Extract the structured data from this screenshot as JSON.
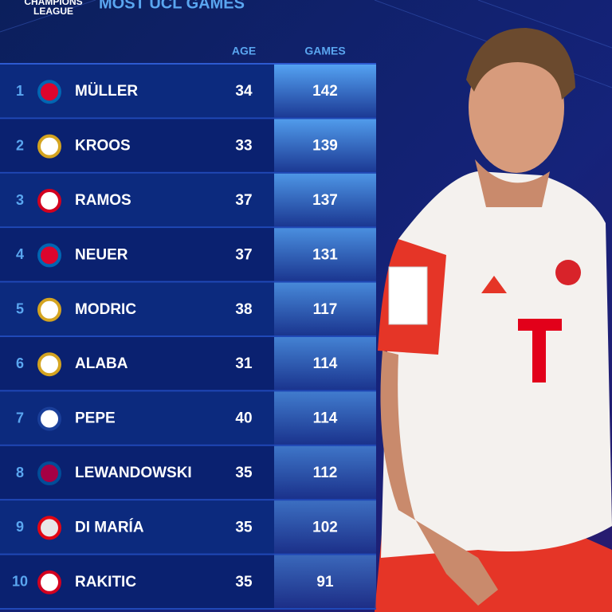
{
  "header": {
    "logo": [
      "CHAMPIONS",
      "LEAGUE"
    ],
    "title": "MOST UCL GAMES"
  },
  "table": {
    "columns": [
      "AGE",
      "GAMES"
    ],
    "rows": [
      [
        1,
        "MÜLLER",
        34,
        142
      ],
      [
        2,
        "KROOS",
        33,
        139
      ],
      [
        3,
        "RAMOS",
        37,
        137
      ],
      [
        4,
        "NEUER",
        37,
        131
      ],
      [
        5,
        "MODRIC",
        38,
        117
      ],
      [
        6,
        "ALABA",
        31,
        114
      ],
      [
        7,
        "PEPE",
        40,
        114
      ],
      [
        8,
        "LEWANDOWSKI",
        35,
        112
      ],
      [
        9,
        "DI MARÍA",
        35,
        102
      ],
      [
        10,
        "RAKITIC",
        35,
        91
      ]
    ]
  }
}
